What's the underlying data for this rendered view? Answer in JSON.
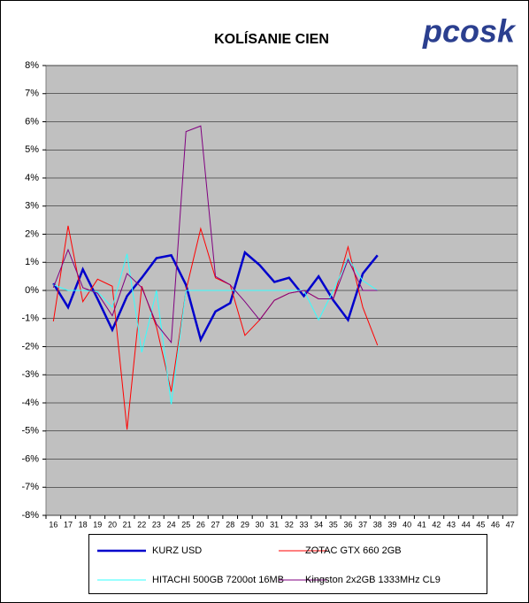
{
  "chart_data": {
    "type": "line",
    "title": "KOLÍSANIE CIEN",
    "logo": "pcosk",
    "categories": [
      16,
      17,
      18,
      19,
      20,
      21,
      22,
      23,
      24,
      25,
      26,
      27,
      28,
      29,
      30,
      31,
      32,
      33,
      34,
      35,
      36,
      37,
      38,
      39,
      40,
      41,
      42,
      43,
      44,
      45,
      46,
      47
    ],
    "series": [
      {
        "name": "KURZ USD",
        "color": "#0000cc",
        "values": [
          0.25,
          -0.6,
          0.75,
          -0.3,
          -1.4,
          -0.2,
          0.45,
          1.15,
          1.25,
          0.2,
          -1.75,
          -0.75,
          -0.45,
          1.35,
          0.9,
          0.3,
          0.45,
          -0.2,
          0.5,
          -0.35,
          -1.05,
          0.6,
          1.25,
          null,
          null,
          null,
          null,
          null,
          null,
          null,
          null,
          null
        ]
      },
      {
        "name": "ZOTAC GTX 660 2GB",
        "color": "#ff0000",
        "values": [
          -1.1,
          2.3,
          -0.4,
          0.4,
          0.15,
          -4.95,
          0.15,
          -1.3,
          -3.6,
          0.0,
          2.2,
          0.45,
          0.2,
          -1.6,
          -1.05,
          -0.35,
          -0.1,
          0.0,
          -0.3,
          -0.3,
          1.55,
          -0.6,
          -1.95,
          null,
          null,
          null,
          null,
          null,
          null,
          null,
          null,
          null
        ]
      },
      {
        "name": "HITACHI 500GB 7200ot 16MB",
        "color": "#33ffff",
        "values": [
          0.2,
          0.0,
          0.0,
          -0.05,
          -0.6,
          1.3,
          -2.2,
          0.0,
          -4.05,
          0.0,
          0.0,
          0.0,
          0.0,
          0.0,
          0.0,
          0.0,
          0.0,
          0.0,
          -1.05,
          0.0,
          1.15,
          0.35,
          0.0,
          null,
          null,
          null,
          null,
          null,
          null,
          null,
          null,
          null
        ]
      },
      {
        "name": "Kingston 2x2GB 1333MHz CL9",
        "color": "#800080",
        "values": [
          0.1,
          1.45,
          0.1,
          -0.1,
          -0.9,
          0.6,
          0.1,
          -1.2,
          -1.85,
          5.65,
          5.85,
          0.5,
          0.2,
          -0.4,
          -1.05,
          -0.35,
          -0.1,
          0.0,
          -0.3,
          -0.3,
          1.1,
          0.0,
          0.0,
          null,
          null,
          null,
          null,
          null,
          null,
          null,
          null,
          null
        ]
      }
    ],
    "ylim": [
      -8,
      8
    ],
    "yticks": [
      {
        "value": -8,
        "label": "-8%"
      },
      {
        "value": -7,
        "label": "-7%"
      },
      {
        "value": -6,
        "label": "-6%"
      },
      {
        "value": -5,
        "label": "-5%"
      },
      {
        "value": -4,
        "label": "-4%"
      },
      {
        "value": -3,
        "label": "-3%"
      },
      {
        "value": -2,
        "label": "-2%"
      },
      {
        "value": -1,
        "label": "-1%"
      },
      {
        "value": 0,
        "label": "0%"
      },
      {
        "value": 1,
        "label": "1%"
      },
      {
        "value": 2,
        "label": "2%"
      },
      {
        "value": 3,
        "label": "3%"
      },
      {
        "value": 4,
        "label": "4%"
      },
      {
        "value": 5,
        "label": "5%"
      },
      {
        "value": 6,
        "label": "6%"
      },
      {
        "value": 7,
        "label": "7%"
      },
      {
        "value": 8,
        "label": "8%"
      }
    ],
    "grid": true,
    "legend": "bottom"
  }
}
